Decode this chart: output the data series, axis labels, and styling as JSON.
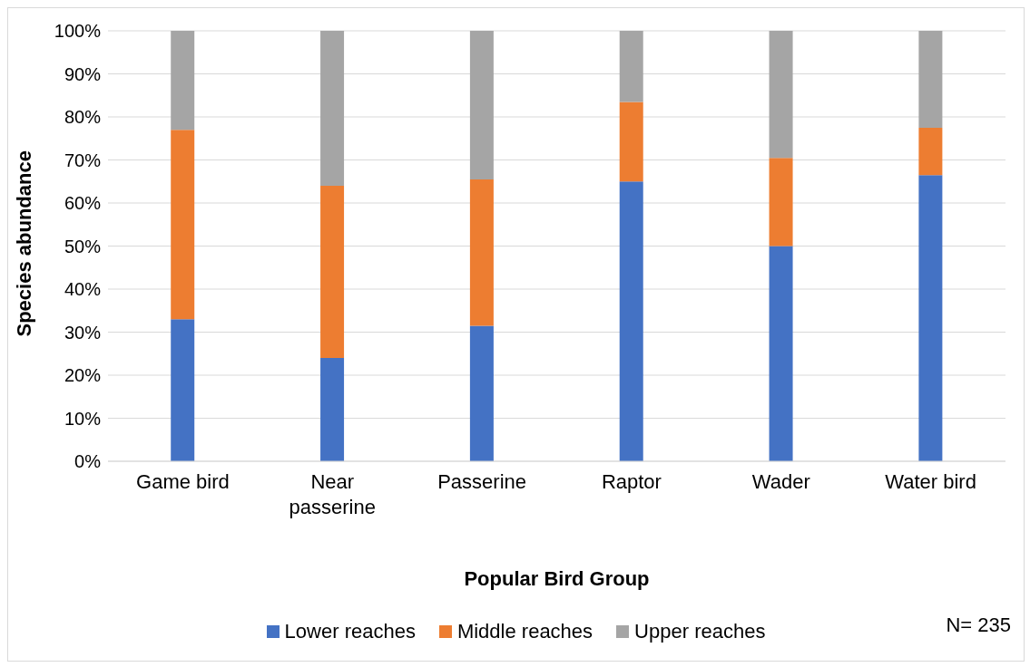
{
  "chart_data": {
    "type": "bar",
    "stacked": true,
    "xlabel": "Popular Bird Group",
    "ylabel": "Species  abundance",
    "categories": [
      "Game bird",
      "Near passerine",
      "Passerine",
      "Raptor",
      "Wader",
      "Water bird"
    ],
    "series": [
      {
        "name": "Lower reaches",
        "color": "#4472c4",
        "values": [
          33,
          24,
          31.5,
          65,
          50,
          66.5
        ]
      },
      {
        "name": "Middle reaches",
        "color": "#ed7d31",
        "values": [
          44,
          40,
          34,
          18.5,
          20.5,
          11
        ]
      },
      {
        "name": "Upper reaches",
        "color": "#a5a5a5",
        "values": [
          23,
          36,
          34.5,
          16.5,
          29.5,
          22.5
        ]
      }
    ],
    "ylim": [
      0,
      100
    ],
    "yticks": [
      {
        "value": 0,
        "label": "0%"
      },
      {
        "value": 10,
        "label": "10%"
      },
      {
        "value": 20,
        "label": "20%"
      },
      {
        "value": 30,
        "label": "30%"
      },
      {
        "value": 40,
        "label": "40%"
      },
      {
        "value": 50,
        "label": "50%"
      },
      {
        "value": 60,
        "label": "60%"
      },
      {
        "value": 70,
        "label": "70%"
      },
      {
        "value": 80,
        "label": "80%"
      },
      {
        "value": 90,
        "label": "90%"
      },
      {
        "value": 100,
        "label": "100%"
      }
    ],
    "grid": "y",
    "legend": "bottom",
    "annotations": [
      "N= 235"
    ]
  }
}
